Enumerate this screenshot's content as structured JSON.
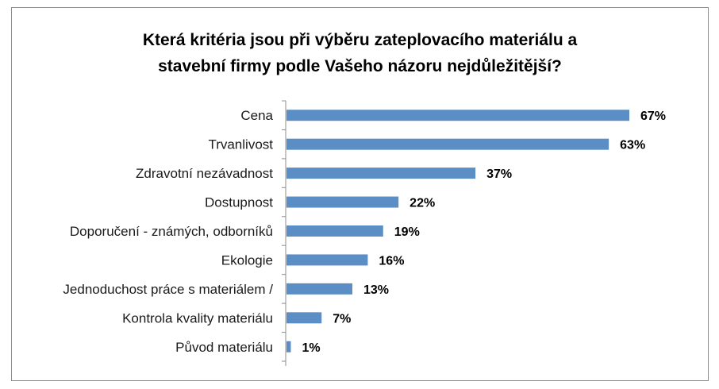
{
  "chart_data": {
    "type": "bar",
    "orientation": "horizontal",
    "title_line1": "Která kritéria jsou při výběru zateplovacího materiálu a",
    "title_line2": "stavební firmy podle Vašeho názoru nejdůležitější?",
    "categories": [
      "Cena",
      "Trvanlivost",
      "Zdravotní nezávadnost",
      "Dostupnost",
      "Doporučení - známých, odborníků",
      "Ekologie",
      "Jednoduchost práce s materiálem /",
      "Kontrola kvality materiálu",
      "Původ materiálu"
    ],
    "values": [
      67,
      63,
      37,
      22,
      19,
      16,
      13,
      7,
      1
    ],
    "value_labels": [
      "67%",
      "63%",
      "37%",
      "22%",
      "19%",
      "16%",
      "13%",
      "7%",
      "1%"
    ],
    "unit": "%",
    "xlim": [
      0,
      80
    ],
    "grid": false,
    "legend": "none",
    "bar_color": "#5b8ec4",
    "axis_color": "#8c8c8c"
  }
}
